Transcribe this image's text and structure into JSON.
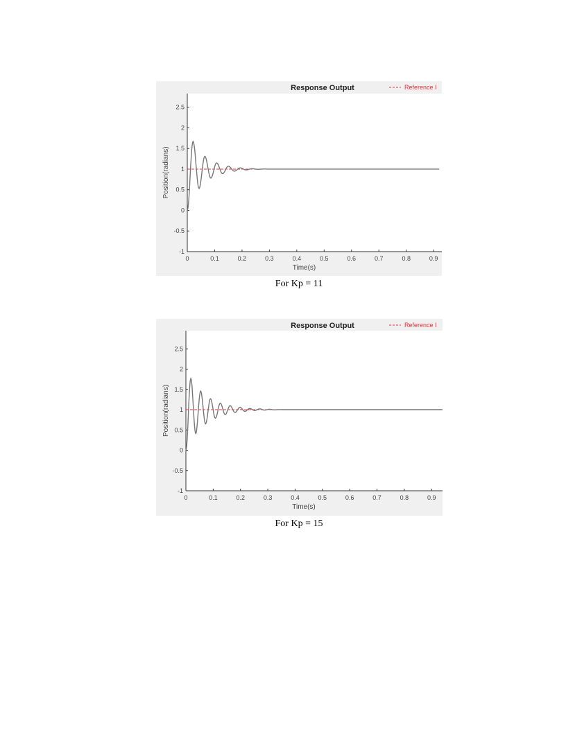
{
  "captions": [
    "For Kp = 11",
    "For Kp = 15"
  ],
  "chart_data": [
    {
      "type": "line",
      "title": "Response Output",
      "xlabel": "Time(s)",
      "ylabel": "Position(radians)",
      "xlim": [
        0,
        0.93
      ],
      "ylim": [
        -1,
        2.83
      ],
      "xticks": [
        "0",
        "0.1",
        "0.2",
        "0.3",
        "0.4",
        "0.5",
        "0.6",
        "0.7",
        "0.8",
        "0.9"
      ],
      "yticks": [
        "-1",
        "-0.5",
        "0",
        "0.5",
        "1",
        "1.5",
        "2",
        "2.5"
      ],
      "legend": {
        "placement": "top-right",
        "entries": [
          "Reference I"
        ]
      },
      "grid": false,
      "series": [
        {
          "name": "Reference I",
          "color": "#e8323c",
          "style": "dashed",
          "x": [
            0,
            0.92
          ],
          "y": [
            1,
            1
          ]
        },
        {
          "color": "#777777",
          "style": "solid",
          "x": [
            0,
            0.021,
            0.043,
            0.064,
            0.086,
            0.107,
            0.129,
            0.15,
            0.172,
            0.193,
            0.215,
            0.236,
            0.258,
            0.28,
            0.3,
            0.92
          ],
          "y": [
            0,
            1.67,
            0.53,
            1.31,
            0.78,
            1.15,
            0.89,
            1.07,
            0.95,
            1.03,
            0.98,
            1.01,
            0.995,
            1.003,
            1,
            1
          ]
        }
      ]
    },
    {
      "type": "line",
      "title": "Response Output",
      "xlabel": "Time(s)",
      "ylabel": "Position(radians)",
      "xlim": [
        0,
        0.94
      ],
      "ylim": [
        -1,
        2.95
      ],
      "xticks": [
        "0",
        "0.1",
        "0.2",
        "0.3",
        "0.4",
        "0.5",
        "0.6",
        "0.7",
        "0.8",
        "0.9"
      ],
      "yticks": [
        "-1",
        "-0.5",
        "0",
        "0.5",
        "1",
        "1.5",
        "2",
        "2.5"
      ],
      "legend": {
        "placement": "top-right",
        "entries": [
          "Reference I"
        ]
      },
      "grid": false,
      "series": [
        {
          "name": "Reference I",
          "color": "#e8323c",
          "style": "dashed",
          "x": [
            0,
            0.94
          ],
          "y": [
            1,
            1
          ]
        },
        {
          "color": "#777777",
          "style": "solid",
          "x": [
            0,
            0.018,
            0.036,
            0.054,
            0.072,
            0.09,
            0.108,
            0.126,
            0.144,
            0.162,
            0.18,
            0.198,
            0.216,
            0.234,
            0.252,
            0.27,
            0.288,
            0.306,
            0.324,
            0.342,
            0.36,
            0.94
          ],
          "y": [
            0,
            1.77,
            0.41,
            1.46,
            0.65,
            1.27,
            0.79,
            1.16,
            0.88,
            1.1,
            0.93,
            1.06,
            0.96,
            1.03,
            0.98,
            1.02,
            0.99,
            1.01,
            0.995,
            1.003,
            1,
            1
          ]
        }
      ]
    }
  ]
}
